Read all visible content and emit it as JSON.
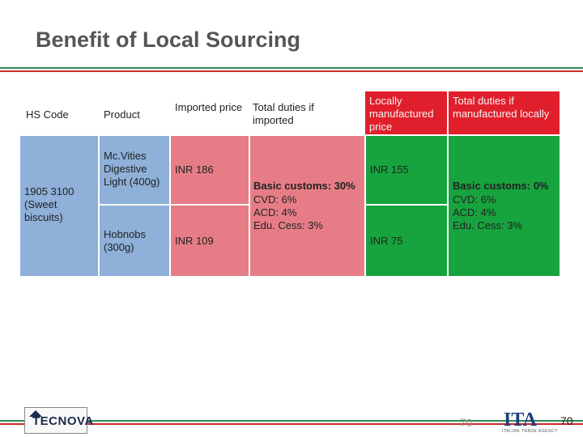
{
  "title": "Benefit of Local Sourcing",
  "headers": {
    "hs_code": "HS Code",
    "product": "Product",
    "imported_price": "Imported price",
    "total_duties_imported": "Total duties if imported",
    "locally_manufactured_price": "Locally manufactured price",
    "total_duties_local": "Total duties if manufactured locally"
  },
  "row": {
    "hs_code": "1905 3100 (Sweet biscuits)",
    "products": [
      {
        "name": "Mc.Vities Digestive Light (400g)",
        "imported_price": "INR 186",
        "local_price": "INR 155"
      },
      {
        "name": "Hobnobs (300g)",
        "imported_price": "INR 109",
        "local_price": "INR 75"
      }
    ],
    "duties_imported": {
      "basic": "Basic customs: 30%",
      "cvd": "CVD: 6%",
      "acd": "ACD: 4%",
      "edu": "Edu. Cess: 3%"
    },
    "duties_local": {
      "basic": "Basic customs: 0%",
      "cvd": "CVD: 6%",
      "acd": "ACD: 4%",
      "edu": "Edu. Cess: 3%"
    }
  },
  "footer": {
    "logo_left": "TECNOVA",
    "logo_right": "ITA",
    "logo_right_sub": "ITALIAN TRADE AGENCY",
    "slide_number_faint": "70",
    "slide_number": "70"
  },
  "colors": {
    "hs_code_col": "#8eb0d9",
    "imported_col": "#e67d86",
    "local_col": "#17a33e",
    "local_header": "#e11f2c"
  }
}
